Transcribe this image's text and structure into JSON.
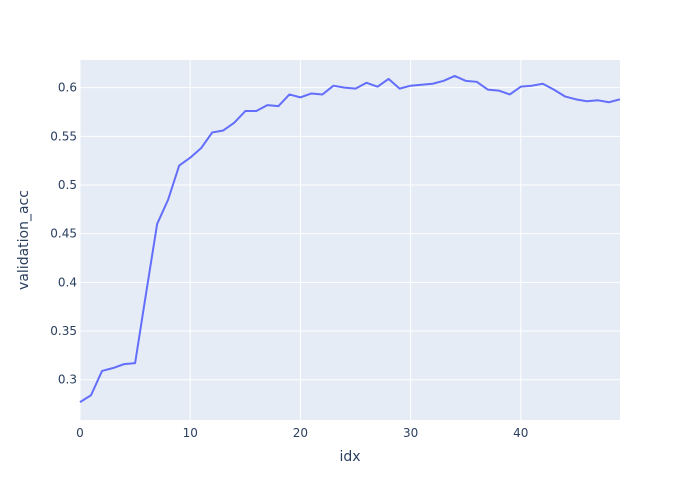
{
  "chart_data": {
    "type": "line",
    "title": "",
    "xlabel": "idx",
    "ylabel": "validation_acc",
    "xlim": [
      0,
      49
    ],
    "ylim": [
      0.2586,
      0.6284
    ],
    "x_ticks": [
      0,
      10,
      20,
      30,
      40
    ],
    "x_tick_labels": [
      "0",
      "10",
      "20",
      "30",
      "40"
    ],
    "y_ticks": [
      0.3,
      0.35,
      0.4,
      0.45,
      0.5,
      0.55,
      0.6
    ],
    "y_tick_labels": [
      "0.3",
      "0.35",
      "0.4",
      "0.45",
      "0.5",
      "0.55",
      "0.6"
    ],
    "grid": true,
    "legend": "none",
    "colors": {
      "plot_background": "#E5ECF6",
      "grid": "#ffffff",
      "line": "#636EFA",
      "text": "#2a3f5f"
    },
    "series": [
      {
        "x": [
          0,
          1,
          2,
          3,
          4,
          5,
          6,
          7,
          8,
          9,
          10,
          11,
          12,
          13,
          14,
          15,
          16,
          17,
          18,
          19,
          20,
          21,
          22,
          23,
          24,
          25,
          26,
          27,
          28,
          29,
          30,
          31,
          32,
          33,
          34,
          35,
          36,
          37,
          38,
          39,
          40,
          41,
          42,
          43,
          44,
          45,
          46,
          47,
          48,
          49
        ],
        "y": [
          0.277,
          0.284,
          0.309,
          0.312,
          0.316,
          0.317,
          0.389,
          0.46,
          0.485,
          0.52,
          0.528,
          0.538,
          0.554,
          0.556,
          0.564,
          0.576,
          0.576,
          0.582,
          0.581,
          0.593,
          0.59,
          0.594,
          0.593,
          0.602,
          0.6,
          0.599,
          0.605,
          0.601,
          0.609,
          0.599,
          0.602,
          0.603,
          0.604,
          0.607,
          0.612,
          0.607,
          0.606,
          0.598,
          0.597,
          0.593,
          0.601,
          0.602,
          0.604,
          0.598,
          0.591,
          0.588,
          0.586,
          0.587,
          0.585,
          0.588
        ]
      }
    ]
  }
}
